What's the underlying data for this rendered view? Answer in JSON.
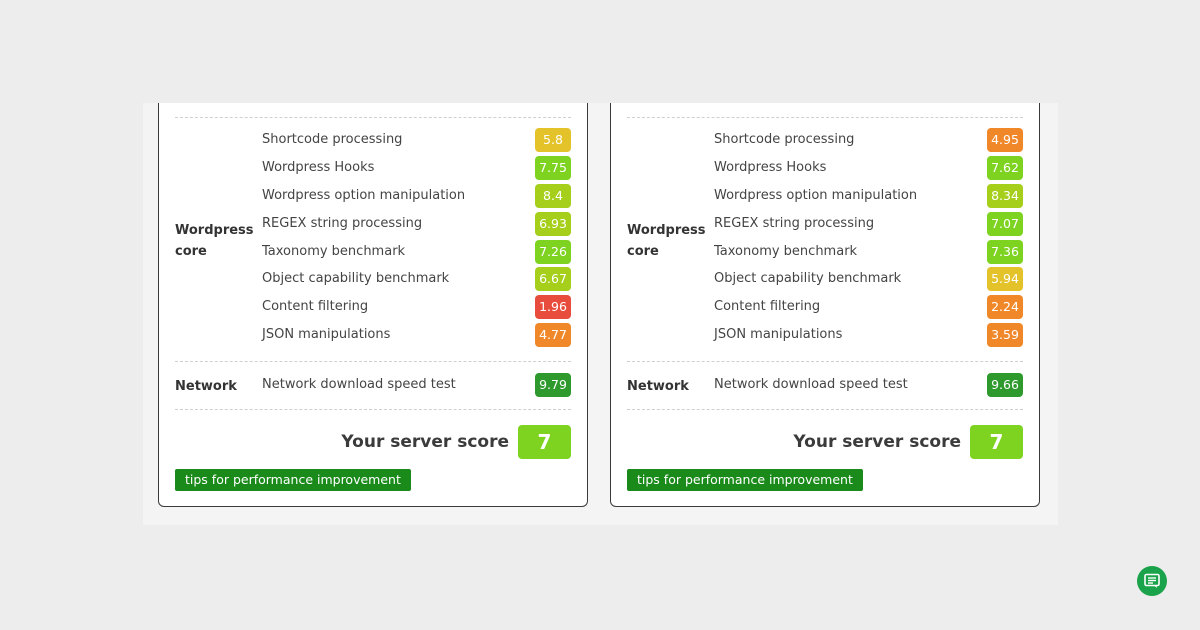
{
  "colors": {
    "score_excellent": "#2e9a2e",
    "score_good": "#7ed321",
    "score_ok": "#a6cf1c",
    "score_fair": "#e4c22a",
    "score_medium": "#f0882a",
    "score_poor": "#e84c3d",
    "tips_button": "#1a8a1a",
    "chat_button": "#1aa34a"
  },
  "panels": [
    {
      "wordpress_core_label": "Wordpress core",
      "wordpress_core": [
        {
          "label": "Shortcode processing",
          "value": "5.8",
          "level": "fair"
        },
        {
          "label": "Wordpress Hooks",
          "value": "7.75",
          "level": "good"
        },
        {
          "label": "Wordpress option manipulation",
          "value": "8.4",
          "level": "ok"
        },
        {
          "label": "REGEX string processing",
          "value": "6.93",
          "level": "ok"
        },
        {
          "label": "Taxonomy benchmark",
          "value": "7.26",
          "level": "good"
        },
        {
          "label": "Object capability benchmark",
          "value": "6.67",
          "level": "ok"
        },
        {
          "label": "Content filtering",
          "value": "1.96",
          "level": "poor"
        },
        {
          "label": "JSON manipulations",
          "value": "4.77",
          "level": "medium"
        }
      ],
      "network_label": "Network",
      "network": [
        {
          "label": "Network download speed test",
          "value": "9.79",
          "level": "excellent"
        }
      ],
      "score_label": "Your server score",
      "score_value": "7",
      "tips_label": "tips for performance improvement"
    },
    {
      "wordpress_core_label": "Wordpress core",
      "wordpress_core": [
        {
          "label": "Shortcode processing",
          "value": "4.95",
          "level": "medium"
        },
        {
          "label": "Wordpress Hooks",
          "value": "7.62",
          "level": "good"
        },
        {
          "label": "Wordpress option manipulation",
          "value": "8.34",
          "level": "ok"
        },
        {
          "label": "REGEX string processing",
          "value": "7.07",
          "level": "good"
        },
        {
          "label": "Taxonomy benchmark",
          "value": "7.36",
          "level": "good"
        },
        {
          "label": "Object capability benchmark",
          "value": "5.94",
          "level": "fair"
        },
        {
          "label": "Content filtering",
          "value": "2.24",
          "level": "medium"
        },
        {
          "label": "JSON manipulations",
          "value": "3.59",
          "level": "medium"
        }
      ],
      "network_label": "Network",
      "network": [
        {
          "label": "Network download speed test",
          "value": "9.66",
          "level": "excellent"
        }
      ],
      "score_label": "Your server score",
      "score_value": "7",
      "tips_label": "tips for performance improvement"
    }
  ],
  "chat_icon": "chat-icon"
}
